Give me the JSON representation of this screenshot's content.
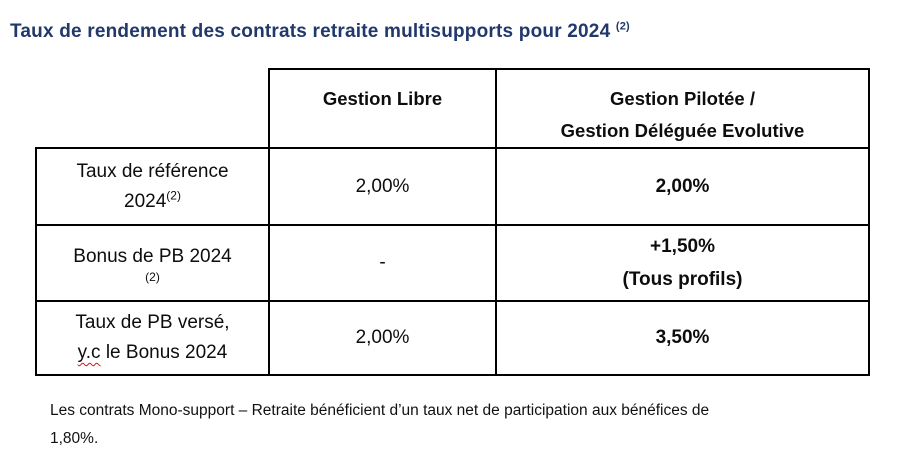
{
  "colors": {
    "title_navy": "#20386b",
    "table_border": "#000000",
    "misspelling_underline": "#dd1111"
  },
  "title": {
    "text": "Taux de rendement des contrats retraite multisupports pour 2024",
    "superscript": "(2)"
  },
  "table": {
    "header": {
      "gestion_libre": "Gestion Libre",
      "gestion_pilotee_line1": "Gestion Pilotée /",
      "gestion_pilotee_line2": "Gestion Déléguée Evolutive"
    },
    "rows": [
      {
        "label_line1": "Taux de référence",
        "label_line2": "2024",
        "label_superscript": "(2)",
        "gestion_libre": "2,00%",
        "gestion_pilotee": "2,00%"
      },
      {
        "label_line1": "Bonus de PB 2024",
        "label_superscript": "(2)",
        "gestion_libre": "-",
        "gestion_pilotee_line1": "+1,50%",
        "gestion_pilotee_line2": "(Tous profils)"
      },
      {
        "label_line1": "Taux de PB versé,",
        "label_line2_misspelled_word": "y.c",
        "label_line2_rest": " le Bonus 2024",
        "gestion_libre": "2,00%",
        "gestion_pilotee": "3,50%"
      }
    ]
  },
  "footnote": "Les contrats Mono-support – Retraite bénéficient d’un taux net de participation aux bénéfices de\n1,80%."
}
